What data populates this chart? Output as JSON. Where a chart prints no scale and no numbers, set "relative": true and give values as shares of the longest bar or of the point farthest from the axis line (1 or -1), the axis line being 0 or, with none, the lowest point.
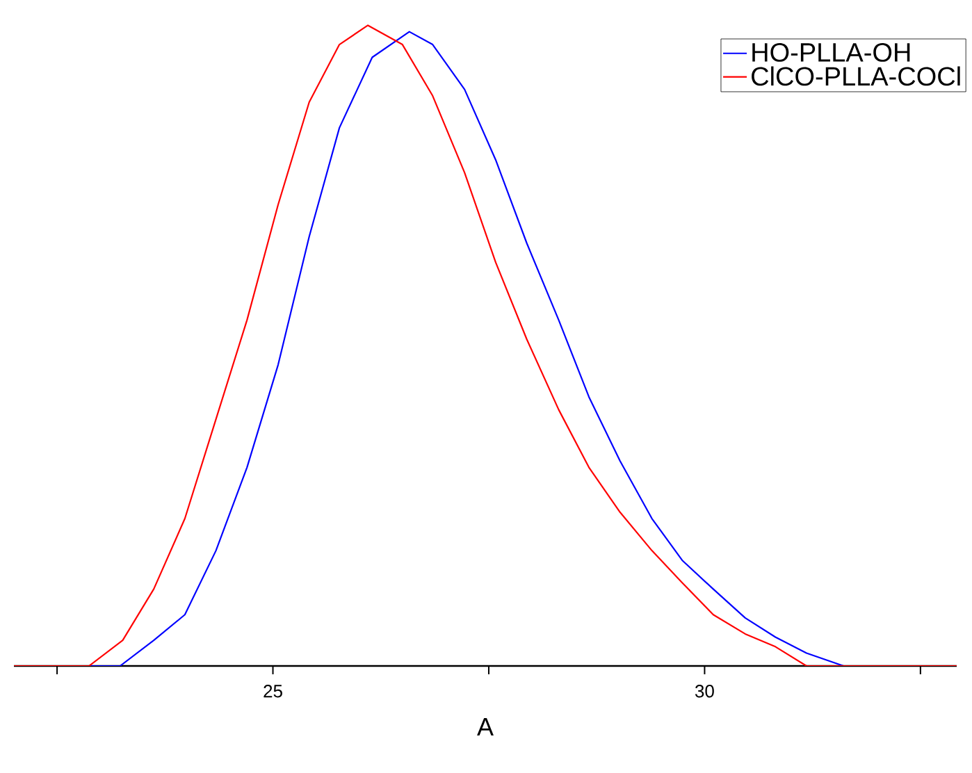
{
  "chart_data": {
    "type": "line",
    "xlabel": "A",
    "relative": true,
    "legend": "top right",
    "line_style": "solid",
    "marker": "none",
    "xlim": [
      22.0,
      32.92
    ],
    "xticks": [
      {
        "value": 22.5,
        "label": null
      },
      25,
      {
        "value": 27.5,
        "label": null
      },
      30,
      {
        "value": 32.5,
        "label": null
      }
    ],
    "series": [
      {
        "name": "HO-PLLA-OH",
        "color": "#0000ff",
        "x": [
          22.0,
          23.23,
          23.62,
          23.98,
          24.34,
          24.7,
          25.06,
          25.42,
          25.77,
          26.15,
          26.58,
          26.85,
          27.22,
          27.58,
          27.94,
          28.31,
          28.66,
          29.02,
          29.39,
          29.74,
          30.1,
          30.47,
          30.82,
          31.18,
          31.61,
          32.92
        ],
        "values": [
          0,
          0,
          0.04,
          0.08,
          0.18,
          0.31,
          0.47,
          0.67,
          0.84,
          0.95,
          0.99,
          0.97,
          0.9,
          0.79,
          0.66,
          0.54,
          0.42,
          0.32,
          0.23,
          0.165,
          0.12,
          0.075,
          0.045,
          0.02,
          0,
          0
        ]
      },
      {
        "name": "ClCO-PLLA-COCl",
        "color": "#ff0000",
        "x": [
          22.0,
          22.87,
          23.26,
          23.62,
          23.98,
          24.34,
          24.7,
          25.06,
          25.42,
          25.77,
          26.1,
          26.5,
          26.85,
          27.22,
          27.58,
          27.94,
          28.31,
          28.66,
          29.02,
          29.39,
          29.74,
          30.1,
          30.47,
          30.82,
          31.18,
          32.92
        ],
        "values": [
          0,
          0,
          0.04,
          0.12,
          0.23,
          0.385,
          0.54,
          0.72,
          0.88,
          0.97,
          1.0,
          0.97,
          0.89,
          0.77,
          0.63,
          0.51,
          0.4,
          0.31,
          0.24,
          0.18,
          0.13,
          0.08,
          0.05,
          0.03,
          0,
          0
        ]
      }
    ]
  }
}
